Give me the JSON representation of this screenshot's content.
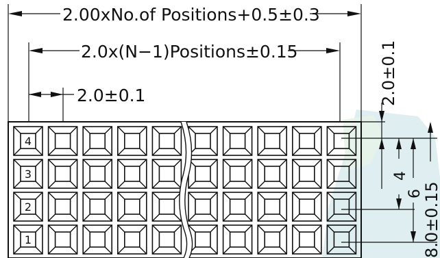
{
  "dimensions": {
    "overall_length": "2.00xNo.of  Positions+0.5±0.3",
    "pitch_span": "2.0x(N−1)Positions±0.15",
    "pitch": "2.0±0.1",
    "top_offset": "2.0±0.1",
    "row_span_4": "4",
    "row_span_6": "6",
    "body_height": "8.0±0.15"
  },
  "rows": [
    "4",
    "3",
    "2",
    "1"
  ],
  "grid": {
    "row_count": 4,
    "column_count": 10,
    "break_after_column": 5
  },
  "colors": {
    "line": "#111111",
    "watermark": "#d9ecef"
  }
}
